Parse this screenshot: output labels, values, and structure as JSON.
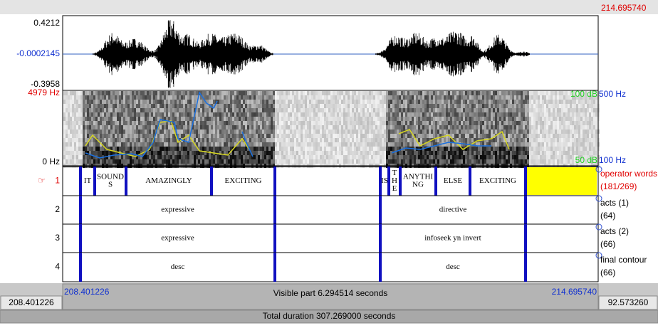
{
  "header": {
    "end_time": "214.695740"
  },
  "waveform": {
    "max": "0.4212",
    "mid": "-0.0002145",
    "min": "-0.3958"
  },
  "spectrogram": {
    "top_freq": "4979 Hz",
    "bottom_freq": "0 Hz",
    "top_db": "100 dB",
    "top_pitch": "500 Hz",
    "bottom_db": "50 dB",
    "bottom_pitch": "100 Hz"
  },
  "tiers": [
    {
      "pointer": "☞",
      "number": "1",
      "name": "operator words",
      "count": "(181/269)",
      "intervals": [
        [
          "IT"
        ],
        [
          "SOUND",
          "S"
        ],
        [
          "AMAZINGLY"
        ],
        [
          "EXCITING"
        ],
        [
          "IS"
        ],
        [
          "T",
          "H",
          "E"
        ],
        [
          "ANYTHI",
          "NG"
        ],
        [
          "ELSE"
        ],
        [
          "EXCITING"
        ]
      ]
    },
    {
      "number": "2",
      "name": "acts (1)",
      "count": "(64)",
      "intervals": [
        [
          "expressive"
        ],
        [
          "directive"
        ]
      ]
    },
    {
      "number": "3",
      "name": "acts (2)",
      "count": "(66)",
      "intervals": [
        [
          "expressive"
        ],
        [
          "infoseek yn invert"
        ]
      ]
    },
    {
      "number": "4",
      "name": "final contour",
      "count": "(66)",
      "intervals": [
        [
          "desc"
        ],
        [
          "desc"
        ]
      ]
    }
  ],
  "footer": {
    "window_start": "208.401226",
    "visible_start": "208.401226",
    "visible_part": "Visible part 6.294514 seconds",
    "visible_end": "214.695740",
    "remaining": "92.573260",
    "total": "Total duration 307.269000 seconds"
  }
}
